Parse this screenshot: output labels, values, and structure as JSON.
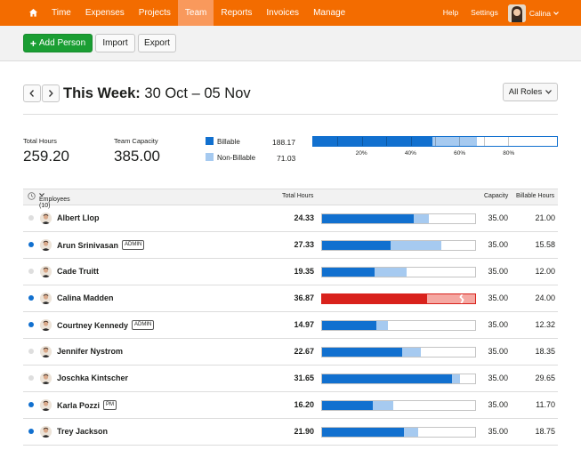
{
  "nav": {
    "items": [
      {
        "label": "Time",
        "active": false
      },
      {
        "label": "Expenses",
        "active": false
      },
      {
        "label": "Projects",
        "active": false
      },
      {
        "label": "Team",
        "active": true
      },
      {
        "label": "Reports",
        "active": false
      },
      {
        "label": "Invoices",
        "active": false
      },
      {
        "label": "Manage",
        "active": false
      }
    ],
    "help": "Help",
    "settings": "Settings",
    "user": "Calina"
  },
  "actions": {
    "add_person": "Add Person",
    "import": "Import",
    "export": "Export"
  },
  "week": {
    "prefix": "This Week:",
    "range": "30 Oct – 05 Nov",
    "roles_filter": "All Roles"
  },
  "summary": {
    "total_hours_label": "Total Hours",
    "total_hours": "259.20",
    "capacity_label": "Team Capacity",
    "capacity": "385.00",
    "billable_label": "Billable",
    "billable": "188.17",
    "nonbillable_label": "Non-Billable",
    "nonbillable": "71.03",
    "billable_fraction": 0.489,
    "nonbillable_fraction": 0.184,
    "scale_labels": [
      "20%",
      "40%",
      "60%",
      "80%"
    ]
  },
  "table": {
    "col_employees": "Employees (10)",
    "col_total": "Total Hours",
    "col_capacity": "Capacity",
    "col_billable": "Billable Hours",
    "rows": [
      {
        "name": "Albert Llop",
        "badge": "",
        "active": false,
        "total": "24.33",
        "capacity": "35.00",
        "billable": "21.00",
        "billable_frac": 0.6,
        "nonbill_frac": 0.095,
        "over": false
      },
      {
        "name": "Arun Srinivasan",
        "badge": "ADMIN",
        "active": true,
        "total": "27.33",
        "capacity": "35.00",
        "billable": "15.58",
        "billable_frac": 0.445,
        "nonbill_frac": 0.336,
        "over": false
      },
      {
        "name": "Cade Truitt",
        "badge": "",
        "active": false,
        "total": "19.35",
        "capacity": "35.00",
        "billable": "12.00",
        "billable_frac": 0.343,
        "nonbill_frac": 0.21,
        "over": false
      },
      {
        "name": "Calina Madden",
        "badge": "",
        "active": true,
        "total": "36.87",
        "capacity": "35.00",
        "billable": "24.00",
        "billable_frac": 0.686,
        "nonbill_frac": 0.314,
        "over": true
      },
      {
        "name": "Courtney Kennedy",
        "badge": "ADMIN",
        "active": true,
        "total": "14.97",
        "capacity": "35.00",
        "billable": "12.32",
        "billable_frac": 0.352,
        "nonbill_frac": 0.076,
        "over": false
      },
      {
        "name": "Jennifer Nystrom",
        "badge": "",
        "active": false,
        "total": "22.67",
        "capacity": "35.00",
        "billable": "18.35",
        "billable_frac": 0.524,
        "nonbill_frac": 0.124,
        "over": false
      },
      {
        "name": "Joschka Kintscher",
        "badge": "",
        "active": false,
        "total": "31.65",
        "capacity": "35.00",
        "billable": "29.65",
        "billable_frac": 0.847,
        "nonbill_frac": 0.057,
        "over": false
      },
      {
        "name": "Karla Pozzi",
        "badge": "PM",
        "active": true,
        "total": "16.20",
        "capacity": "35.00",
        "billable": "11.70",
        "billable_frac": 0.334,
        "nonbill_frac": 0.129,
        "over": false
      },
      {
        "name": "Trey Jackson",
        "badge": "",
        "active": true,
        "total": "21.90",
        "capacity": "35.00",
        "billable": "18.75",
        "billable_frac": 0.536,
        "nonbill_frac": 0.09,
        "over": false
      }
    ]
  },
  "colors": {
    "brand": "#f36c00",
    "billable": "#1170cf",
    "nonbillable": "#a6caf0",
    "over_billable": "#d9221c",
    "over_nonbillable": "#f5a8a2",
    "active_dot": "#1170cf",
    "inactive_dot": "#dedede",
    "add_button": "#1a9e33"
  }
}
